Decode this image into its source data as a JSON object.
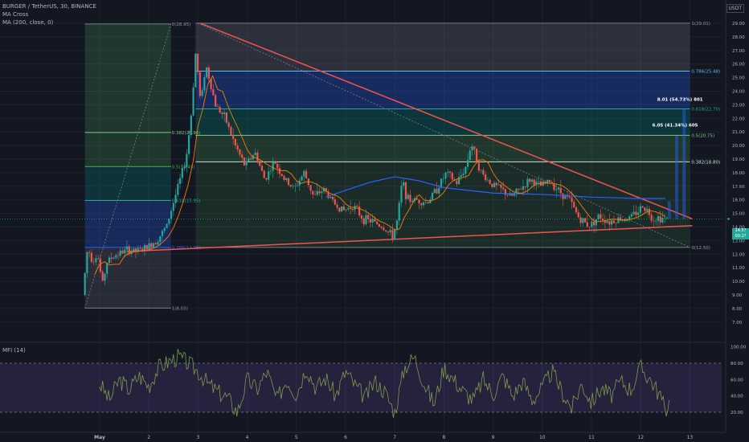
{
  "header": {
    "symbol_line": "BURGER / TetherUS, 30, BINANCE",
    "indicator_1": "MA Cross",
    "indicator_2": "MA (200, close, 0)",
    "currency": "USDT"
  },
  "mfi_label": "MFI (14)",
  "price_tag": {
    "price": "14.5?",
    "time": "00:2?"
  },
  "colors": {
    "background": "#131722",
    "grid": "#1e2230",
    "trendline": "#f05350",
    "ma200": "#2962ff",
    "ma_cross": "#f57c00",
    "candle_up": "#26a69a",
    "candle_down": "#ef5350",
    "fib_blue": "#2962ff",
    "fib_green": "#4caf50",
    "fib_gray": "#787b86",
    "mfi_line": "#7e9a4d",
    "mfi_band": "#4a1f6e"
  },
  "chart_data": [
    {
      "type": "candlestick",
      "title": "BURGER / TetherUS, 30, BINANCE",
      "y_ticks": [
        "29.00",
        "28.00",
        "27.00",
        "26.00",
        "25.00",
        "24.00",
        "23.00",
        "22.00",
        "21.00",
        "20.00",
        "19.00",
        "18.00",
        "17.00",
        "16.00",
        "15.00",
        "14.00",
        "13.00",
        "12.00",
        "11.00",
        "10.00",
        "9.00",
        "8.00",
        "7.00"
      ],
      "ylim": [
        6.3,
        29.8
      ],
      "x_ticks": [
        {
          "label": "May",
          "day": 1
        },
        {
          "label": "2",
          "day": 2
        },
        {
          "label": "3",
          "day": 3
        },
        {
          "label": "4",
          "day": 4
        },
        {
          "label": "5",
          "day": 5
        },
        {
          "label": "6",
          "day": 6
        },
        {
          "label": "7",
          "day": 7
        },
        {
          "label": "8",
          "day": 8
        },
        {
          "label": "9",
          "day": 9
        },
        {
          "label": "10",
          "day": 10
        },
        {
          "label": "11",
          "day": 11
        },
        {
          "label": "12",
          "day": 12
        },
        {
          "label": "13",
          "day": 13
        }
      ],
      "price_path": [
        [
          0.7,
          9.0
        ],
        [
          0.8,
          12.5
        ],
        [
          0.9,
          11.5
        ],
        [
          1.0,
          12.0
        ],
        [
          1.1,
          9.8
        ],
        [
          1.2,
          11.5
        ],
        [
          1.4,
          12.0
        ],
        [
          1.6,
          12.3
        ],
        [
          1.8,
          12.2
        ],
        [
          2.0,
          12.5
        ],
        [
          2.2,
          13.0
        ],
        [
          2.4,
          14.0
        ],
        [
          2.6,
          16.5
        ],
        [
          2.8,
          19.0
        ],
        [
          2.9,
          22.0
        ],
        [
          3.0,
          27.0
        ],
        [
          3.1,
          23.0
        ],
        [
          3.2,
          26.0
        ],
        [
          3.3,
          24.5
        ],
        [
          3.4,
          23.0
        ],
        [
          3.6,
          22.0
        ],
        [
          3.8,
          20.0
        ],
        [
          4.0,
          18.5
        ],
        [
          4.2,
          19.5
        ],
        [
          4.4,
          17.5
        ],
        [
          4.6,
          18.8
        ],
        [
          4.8,
          17.5
        ],
        [
          5.0,
          16.8
        ],
        [
          5.2,
          18.0
        ],
        [
          5.4,
          16.2
        ],
        [
          5.6,
          16.8
        ],
        [
          5.8,
          15.8
        ],
        [
          6.0,
          15.2
        ],
        [
          6.2,
          15.6
        ],
        [
          6.4,
          14.6
        ],
        [
          6.6,
          14.4
        ],
        [
          6.8,
          14.0
        ],
        [
          7.0,
          13.3
        ],
        [
          7.1,
          14.5
        ],
        [
          7.2,
          17.5
        ],
        [
          7.3,
          16.0
        ],
        [
          7.5,
          16.0
        ],
        [
          7.7,
          15.8
        ],
        [
          7.9,
          16.8
        ],
        [
          8.1,
          18.0
        ],
        [
          8.3,
          17.2
        ],
        [
          8.5,
          18.5
        ],
        [
          8.6,
          20.2
        ],
        [
          8.8,
          18.0
        ],
        [
          9.0,
          17.2
        ],
        [
          9.2,
          16.8
        ],
        [
          9.4,
          16.2
        ],
        [
          9.6,
          16.8
        ],
        [
          9.8,
          17.5
        ],
        [
          10.0,
          17.0
        ],
        [
          10.2,
          17.4
        ],
        [
          10.4,
          16.6
        ],
        [
          10.6,
          16.0
        ],
        [
          10.8,
          14.6
        ],
        [
          11.0,
          14.1
        ],
        [
          11.2,
          14.8
        ],
        [
          11.4,
          14.4
        ],
        [
          11.6,
          14.6
        ],
        [
          11.8,
          14.6
        ],
        [
          12.0,
          15.2
        ],
        [
          12.1,
          15.6
        ],
        [
          12.2,
          15.1
        ],
        [
          12.3,
          14.6
        ],
        [
          12.4,
          14.7
        ],
        [
          12.55,
          14.6
        ]
      ],
      "ma200_path": [
        [
          5.6,
          16.2
        ],
        [
          6.0,
          16.7
        ],
        [
          6.5,
          17.3
        ],
        [
          7.0,
          17.7
        ],
        [
          7.5,
          17.4
        ],
        [
          8.0,
          16.9
        ],
        [
          8.5,
          16.7
        ],
        [
          9.0,
          16.5
        ],
        [
          10.0,
          16.4
        ],
        [
          11.0,
          16.2
        ],
        [
          12.0,
          16.1
        ],
        [
          12.5,
          16.1
        ]
      ],
      "trendlines": [
        {
          "from": [
            3.05,
            29.0
          ],
          "to": [
            13.05,
            14.6
          ]
        },
        {
          "from": [
            1.55,
            12.2
          ],
          "to": [
            13.05,
            14.1
          ]
        }
      ],
      "fib_left": {
        "x_range": [
          0.7,
          2.45
        ],
        "levels": [
          {
            "label": "0(28.95)",
            "price": 28.95
          },
          {
            "label": "0.382(20.96)",
            "price": 20.96
          },
          {
            "label": "0.5(18.45)",
            "price": 18.45
          },
          {
            "label": "0.618(15.95)",
            "price": 15.95
          },
          {
            "label": "0.786(12.50)",
            "price": 12.5
          },
          {
            "label": "1(8.03)",
            "price": 8.03
          }
        ]
      },
      "fib_right": {
        "x_range": [
          2.95,
          13.0
        ],
        "levels": [
          {
            "label": "1(29.01)",
            "price": 29.01
          },
          {
            "label": "0.786(25.48)",
            "price": 25.48
          },
          {
            "label": "0.618(22.70)",
            "price": 22.7
          },
          {
            "label": "0.5(20.75)",
            "price": 20.75
          },
          {
            "label": "0.382(18.80)",
            "price": 18.8
          },
          {
            "label": "0(12.50)",
            "price": 12.5
          }
        ]
      },
      "annotations": [
        {
          "text": "8.01 (54.73%) 801",
          "day": 12.5,
          "price": 23.3
        },
        {
          "text": "6.05 (41.34%) 605",
          "day": 12.4,
          "price": 21.4
        }
      ],
      "last_price": 14.6
    },
    {
      "type": "line",
      "title": "MFI (14)",
      "y_ticks": [
        "100.00",
        "80.00",
        "60.00",
        "40.00",
        "20.00"
      ],
      "ylim": [
        0,
        100
      ],
      "bands": [
        20,
        80
      ],
      "values_path": [
        [
          1.0,
          55
        ],
        [
          1.2,
          35
        ],
        [
          1.4,
          60
        ],
        [
          1.6,
          48
        ],
        [
          1.8,
          65
        ],
        [
          2.0,
          52
        ],
        [
          2.2,
          75
        ],
        [
          2.4,
          82
        ],
        [
          2.6,
          88
        ],
        [
          2.8,
          80
        ],
        [
          3.0,
          70
        ],
        [
          3.2,
          55
        ],
        [
          3.4,
          45
        ],
        [
          3.6,
          38
        ],
        [
          3.8,
          20
        ],
        [
          4.0,
          60
        ],
        [
          4.2,
          48
        ],
        [
          4.4,
          70
        ],
        [
          4.6,
          35
        ],
        [
          4.8,
          60
        ],
        [
          5.0,
          42
        ],
        [
          5.2,
          75
        ],
        [
          5.4,
          50
        ],
        [
          5.6,
          62
        ],
        [
          5.8,
          40
        ],
        [
          6.0,
          70
        ],
        [
          6.2,
          52
        ],
        [
          6.4,
          38
        ],
        [
          6.6,
          58
        ],
        [
          6.8,
          45
        ],
        [
          7.0,
          20
        ],
        [
          7.2,
          75
        ],
        [
          7.4,
          88
        ],
        [
          7.6,
          55
        ],
        [
          7.8,
          30
        ],
        [
          8.0,
          75
        ],
        [
          8.2,
          60
        ],
        [
          8.4,
          45
        ],
        [
          8.6,
          35
        ],
        [
          8.8,
          60
        ],
        [
          9.0,
          42
        ],
        [
          9.2,
          65
        ],
        [
          9.4,
          40
        ],
        [
          9.6,
          58
        ],
        [
          9.8,
          35
        ],
        [
          10.0,
          50
        ],
        [
          10.2,
          70
        ],
        [
          10.4,
          45
        ],
        [
          10.6,
          25
        ],
        [
          10.8,
          55
        ],
        [
          11.0,
          32
        ],
        [
          11.2,
          50
        ],
        [
          11.4,
          40
        ],
        [
          11.6,
          58
        ],
        [
          11.8,
          48
        ],
        [
          12.0,
          75
        ],
        [
          12.2,
          60
        ],
        [
          12.4,
          40
        ],
        [
          12.5,
          22
        ],
        [
          12.6,
          35
        ]
      ]
    }
  ]
}
